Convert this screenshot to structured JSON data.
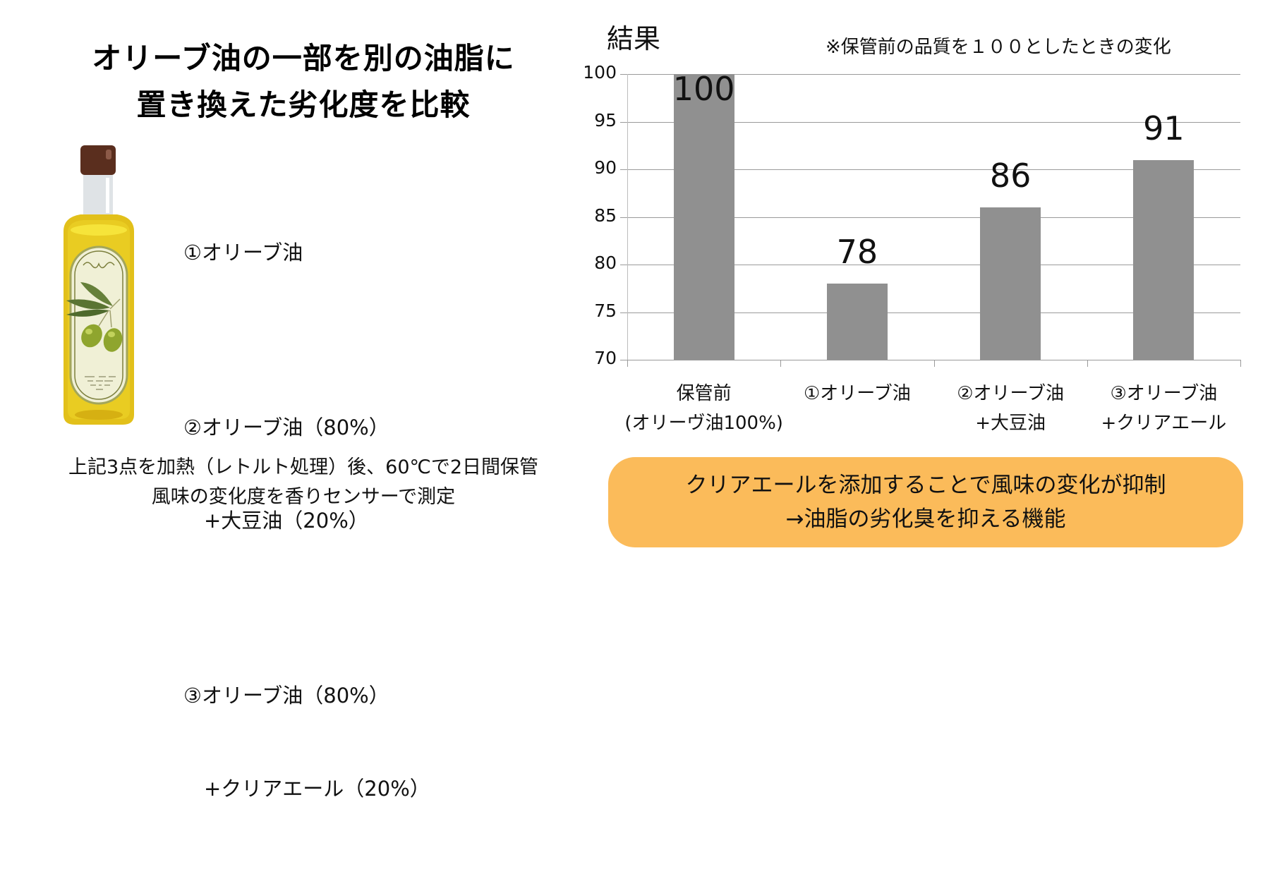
{
  "left_panel": {
    "title_line1": "オリーブ油の一部を別の油脂に",
    "title_line2": "置き換えた劣化度を比較",
    "illustration": "olive-oil-bottle",
    "samples": [
      {
        "line1": "①オリーブ油",
        "line2": ""
      },
      {
        "line1": "②オリーブ油（80%）",
        "line2": "　+大豆油（20%）"
      },
      {
        "line1": "③オリーブ油（80%）",
        "line2": "　+クリアエール（20%）"
      }
    ],
    "method_line1": "上記3点を加熱（レトルト処理）後、60℃で2日間保管",
    "method_line2": "風味の変化度を香りセンサーで測定"
  },
  "right_panel": {
    "heading": "結果",
    "note": "※保管前の品質を１００としたときの変化",
    "conclusion_line1": "クリアエールを添加することで風味の変化が抑制",
    "conclusion_line2": "→油脂の劣化臭を抑える機能"
  },
  "colors": {
    "bar": "#909090",
    "conclusion_bg": "#fbbb5a",
    "grid": "#9a9a9a"
  },
  "chart_data": {
    "type": "bar",
    "title": "結果",
    "subtitle": "※保管前の品質を１００としたときの変化",
    "categories": [
      "保管前\n(オリーヴ油100%)",
      "①オリーブ油",
      "②オリーブ油\n+大豆油",
      "③オリーブ油\n+クリアエール"
    ],
    "values": [
      100,
      78,
      86,
      91
    ],
    "data_labels": [
      "100",
      "78",
      "86",
      "91"
    ],
    "xlabel": "",
    "ylabel": "",
    "ylim": [
      70,
      100
    ],
    "yticks": [
      "70",
      "75",
      "80",
      "85",
      "90",
      "95",
      "100"
    ],
    "grid": true,
    "legend": "none"
  }
}
